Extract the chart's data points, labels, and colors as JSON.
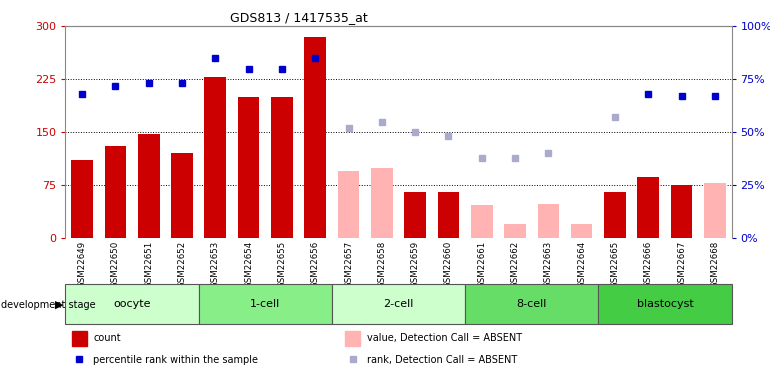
{
  "title": "GDS813 / 1417535_at",
  "samples": [
    "GSM22649",
    "GSM22650",
    "GSM22651",
    "GSM22652",
    "GSM22653",
    "GSM22654",
    "GSM22655",
    "GSM22656",
    "GSM22657",
    "GSM22658",
    "GSM22659",
    "GSM22660",
    "GSM22661",
    "GSM22662",
    "GSM22663",
    "GSM22664",
    "GSM22665",
    "GSM22666",
    "GSM22667",
    "GSM22668"
  ],
  "bar_present": [
    110,
    130,
    148,
    120,
    228,
    200,
    200,
    285,
    null,
    null,
    65,
    65,
    null,
    null,
    null,
    null,
    65,
    87,
    75,
    null
  ],
  "bar_absent": [
    null,
    null,
    null,
    null,
    null,
    null,
    null,
    null,
    95,
    100,
    null,
    null,
    47,
    20,
    48,
    20,
    null,
    null,
    null,
    78
  ],
  "dot_present": [
    68,
    72,
    73,
    73,
    85,
    80,
    80,
    85,
    null,
    null,
    null,
    null,
    null,
    null,
    null,
    null,
    null,
    68,
    67,
    67
  ],
  "dot_absent": [
    null,
    null,
    null,
    null,
    null,
    null,
    null,
    null,
    52,
    55,
    50,
    48,
    38,
    38,
    40,
    null,
    57,
    null,
    null,
    null
  ],
  "bar_color": "#cc0000",
  "bar_absent_color": "#ffb3b3",
  "dot_color": "#0000cc",
  "dot_absent_color": "#aaaacc",
  "ylim_left": [
    0,
    300
  ],
  "ylim_right": [
    0,
    100
  ],
  "yticks_left": [
    0,
    75,
    150,
    225,
    300
  ],
  "yticks_right": [
    0,
    25,
    50,
    75,
    100
  ],
  "groups": [
    {
      "label": "oocyte",
      "start": 0,
      "end": 3,
      "color": "#ccffcc"
    },
    {
      "label": "1-cell",
      "start": 4,
      "end": 7,
      "color": "#88ee88"
    },
    {
      "label": "2-cell",
      "start": 8,
      "end": 11,
      "color": "#ccffcc"
    },
    {
      "label": "8-cell",
      "start": 12,
      "end": 15,
      "color": "#66dd66"
    },
    {
      "label": "blastocyst",
      "start": 16,
      "end": 19,
      "color": "#44cc44"
    }
  ]
}
